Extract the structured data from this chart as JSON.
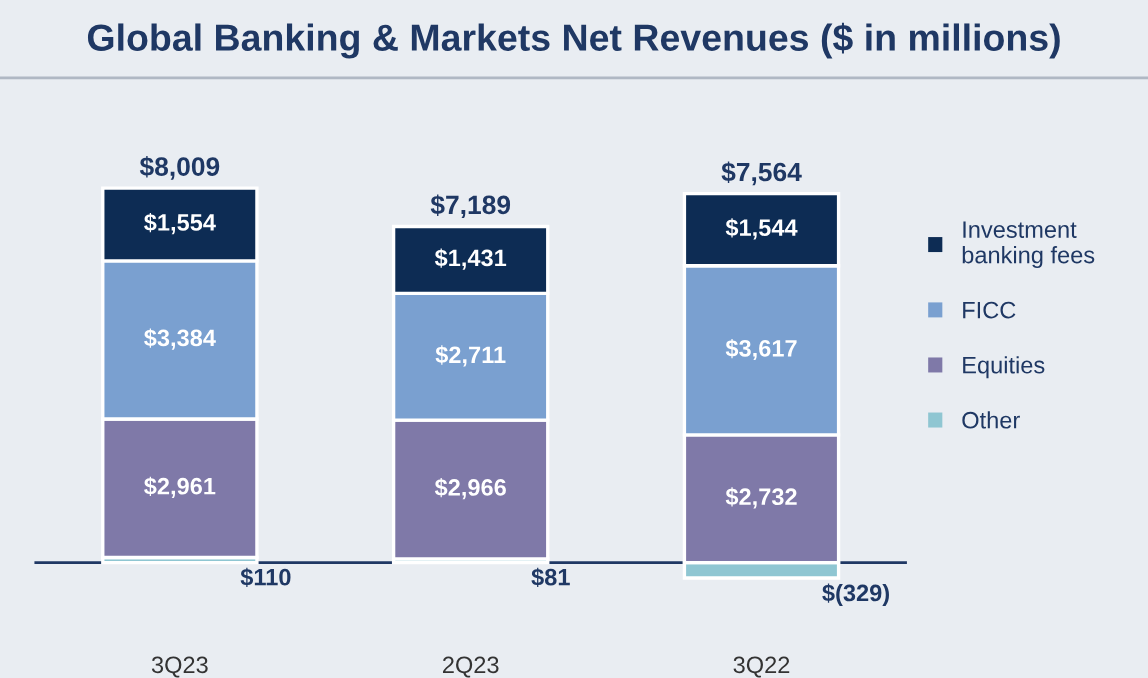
{
  "chart_data": {
    "type": "bar",
    "title": "Global Banking & Markets Net Revenues ($ in millions)",
    "categories": [
      "3Q23",
      "2Q23",
      "3Q22"
    ],
    "stacked": true,
    "legend": "right",
    "grid": false,
    "tick_labels": "x",
    "series": [
      {
        "name": "Other",
        "color": "#8fc6d2",
        "values": [
          110,
          81,
          -329
        ],
        "value_labels": [
          "$110",
          "$81",
          "$(329)"
        ]
      },
      {
        "name": "Equities",
        "color": "#7f79a8",
        "values": [
          2961,
          2966,
          2732
        ],
        "value_labels": [
          "$2,961",
          "$2,966",
          "$2,732"
        ]
      },
      {
        "name": "FICC",
        "color": "#7aa0d0",
        "values": [
          3384,
          2711,
          3617
        ],
        "value_labels": [
          "$3,384",
          "$2,711",
          "$3,617"
        ]
      },
      {
        "name": "Investment\nbanking fees",
        "color": "#0d2c54",
        "values": [
          1554,
          1431,
          1544
        ],
        "value_labels": [
          "$1,554",
          "$1,431",
          "$1,544"
        ]
      }
    ],
    "totals": [
      "$8,009",
      "$7,189",
      "$7,564"
    ],
    "ref_lines": [
      {
        "axis": "y",
        "value": 0,
        "color": "#1f3864"
      }
    ]
  }
}
